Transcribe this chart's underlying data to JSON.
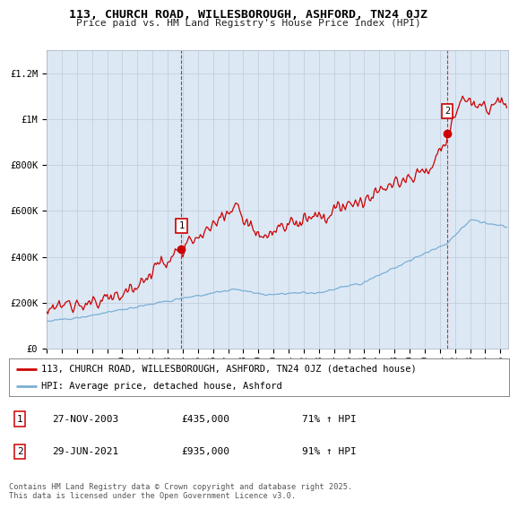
{
  "title": "113, CHURCH ROAD, WILLESBOROUGH, ASHFORD, TN24 0JZ",
  "subtitle": "Price paid vs. HM Land Registry's House Price Index (HPI)",
  "ylabel_ticks": [
    "£0",
    "£200K",
    "£400K",
    "£600K",
    "£800K",
    "£1M",
    "£1.2M"
  ],
  "ytick_values": [
    0,
    200000,
    400000,
    600000,
    800000,
    1000000,
    1200000
  ],
  "ylim": [
    0,
    1300000
  ],
  "xlim_start": 1995.0,
  "xlim_end": 2025.5,
  "transaction1_x": 2003.91,
  "transaction1_y": 435000,
  "transaction1_label": "1",
  "transaction2_x": 2021.49,
  "transaction2_y": 935000,
  "transaction2_label": "2",
  "vline1_x": 2003.91,
  "vline2_x": 2021.49,
  "house_color": "#cc0000",
  "hpi_color": "#7bafd4",
  "plot_bg_color": "#dce9f5",
  "legend_house": "113, CHURCH ROAD, WILLESBOROUGH, ASHFORD, TN24 0JZ (detached house)",
  "legend_hpi": "HPI: Average price, detached house, Ashford",
  "annotation1_date": "27-NOV-2003",
  "annotation1_price": "£435,000",
  "annotation1_hpi": "71% ↑ HPI",
  "annotation2_date": "29-JUN-2021",
  "annotation2_price": "£935,000",
  "annotation2_hpi": "91% ↑ HPI",
  "footer": "Contains HM Land Registry data © Crown copyright and database right 2025.\nThis data is licensed under the Open Government Licence v3.0.",
  "background_color": "#ffffff"
}
